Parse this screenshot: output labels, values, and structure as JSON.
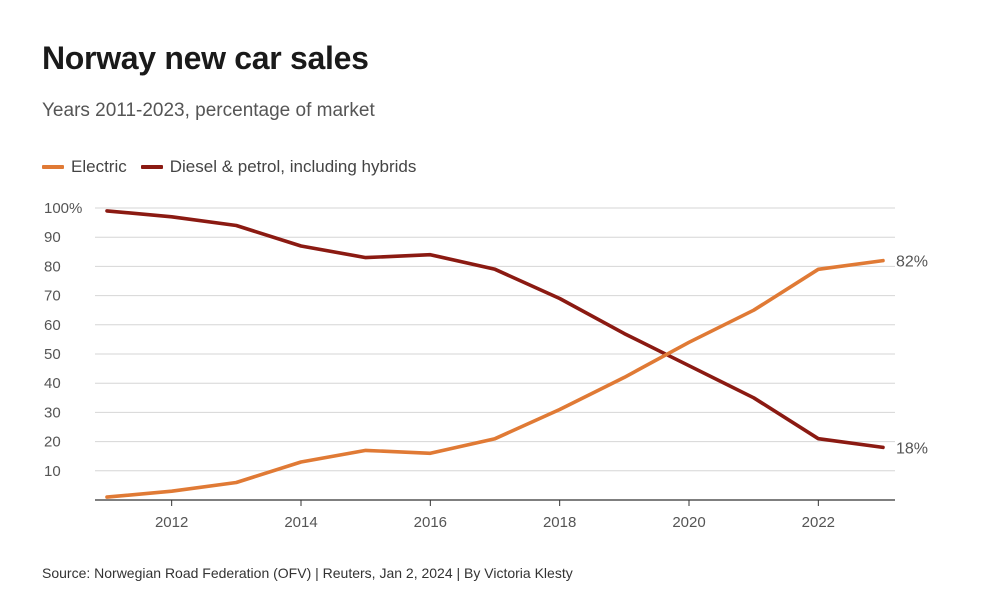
{
  "header": {
    "title": "Norway new car sales",
    "subtitle": "Years 2011-2023, percentage of market"
  },
  "legend": [
    {
      "label": "Electric",
      "color": "#e07a35"
    },
    {
      "label": "Diesel & petrol, including hybrids",
      "color": "#8b1a12"
    }
  ],
  "footer": {
    "source": "Source: Norwegian Road Federation (OFV) | Reuters, Jan 2, 2024 | By Victoria Klesty"
  },
  "chart_data": {
    "type": "line",
    "title": "Norway new car sales",
    "subtitle": "Years 2011-2023, percentage of market",
    "x": [
      2011,
      2012,
      2013,
      2014,
      2015,
      2016,
      2017,
      2018,
      2019,
      2020,
      2021,
      2022,
      2023
    ],
    "xticks": [
      2012,
      2014,
      2016,
      2018,
      2020,
      2022
    ],
    "yticks": [
      10,
      20,
      30,
      40,
      50,
      60,
      70,
      80,
      90,
      100
    ],
    "ytick_labels": [
      "10",
      "20",
      "30",
      "40",
      "50",
      "60",
      "70",
      "80",
      "90",
      "100%"
    ],
    "xlim": [
      2011,
      2023
    ],
    "ylim": [
      0,
      100
    ],
    "grid": true,
    "legend_position": "top-left",
    "series": [
      {
        "name": "Electric",
        "color": "#e07a35",
        "values": [
          1,
          3,
          6,
          13,
          17,
          16,
          21,
          31,
          42,
          54,
          65,
          79,
          82
        ],
        "end_label": "82%"
      },
      {
        "name": "Diesel & petrol, including hybrids",
        "color": "#8b1a12",
        "values": [
          99,
          97,
          94,
          87,
          83,
          84,
          79,
          69,
          57,
          46,
          35,
          21,
          18
        ],
        "end_label": "18%"
      }
    ]
  }
}
